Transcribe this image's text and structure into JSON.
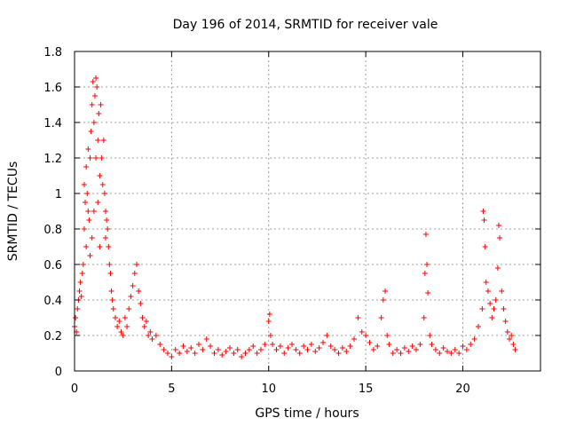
{
  "chart_data": {
    "type": "scatter",
    "title": "Day 196 of 2014, SRMTID for receiver vale",
    "xlabel": "GPS time / hours",
    "ylabel": "SRMTID / TECUs",
    "xlim": [
      0,
      24
    ],
    "ylim": [
      0,
      1.8
    ],
    "xticks": [
      0,
      5,
      10,
      15,
      20
    ],
    "xtick_labels": [
      "0",
      "5",
      "10",
      "15",
      "20"
    ],
    "yticks": [
      0,
      0.2,
      0.4,
      0.6,
      0.8,
      1.0,
      1.2,
      1.4,
      1.6,
      1.8
    ],
    "ytick_labels": [
      "0",
      "0.2",
      "0.4",
      "0.6",
      "0.8",
      "1",
      "1.2",
      "1.4",
      "1.6",
      "1.8"
    ],
    "grid": true,
    "marker": "+",
    "color": "#ff0000",
    "series": [
      {
        "name": "SRMTID",
        "points": [
          [
            0.0,
            0.25
          ],
          [
            0.05,
            0.3
          ],
          [
            0.1,
            0.22
          ],
          [
            0.15,
            0.35
          ],
          [
            0.2,
            0.4
          ],
          [
            0.25,
            0.45
          ],
          [
            0.3,
            0.5
          ],
          [
            0.35,
            0.42
          ],
          [
            0.4,
            0.55
          ],
          [
            0.45,
            0.6
          ],
          [
            0.5,
            1.05
          ],
          [
            0.5,
            0.8
          ],
          [
            0.55,
            0.95
          ],
          [
            0.6,
            1.15
          ],
          [
            0.6,
            0.7
          ],
          [
            0.65,
            1.0
          ],
          [
            0.7,
            0.9
          ],
          [
            0.7,
            1.25
          ],
          [
            0.75,
            0.85
          ],
          [
            0.8,
            1.2
          ],
          [
            0.8,
            0.65
          ],
          [
            0.85,
            1.35
          ],
          [
            0.9,
            1.5
          ],
          [
            0.9,
            0.75
          ],
          [
            0.95,
            1.63
          ],
          [
            1.0,
            1.4
          ],
          [
            1.0,
            0.9
          ],
          [
            1.05,
            1.55
          ],
          [
            1.1,
            1.65
          ],
          [
            1.1,
            1.2
          ],
          [
            1.15,
            1.6
          ],
          [
            1.2,
            1.3
          ],
          [
            1.2,
            0.95
          ],
          [
            1.25,
            1.45
          ],
          [
            1.3,
            1.1
          ],
          [
            1.3,
            0.7
          ],
          [
            1.35,
            1.5
          ],
          [
            1.4,
            1.2
          ],
          [
            1.45,
            1.05
          ],
          [
            1.5,
            1.3
          ],
          [
            1.55,
            1.0
          ],
          [
            1.6,
            0.9
          ],
          [
            1.6,
            0.75
          ],
          [
            1.65,
            0.85
          ],
          [
            1.7,
            0.8
          ],
          [
            1.75,
            0.7
          ],
          [
            1.8,
            0.6
          ],
          [
            1.85,
            0.55
          ],
          [
            1.9,
            0.45
          ],
          [
            1.95,
            0.4
          ],
          [
            2.0,
            0.35
          ],
          [
            2.1,
            0.3
          ],
          [
            2.2,
            0.25
          ],
          [
            2.3,
            0.28
          ],
          [
            2.4,
            0.22
          ],
          [
            2.5,
            0.2
          ],
          [
            2.6,
            0.3
          ],
          [
            2.7,
            0.25
          ],
          [
            2.8,
            0.35
          ],
          [
            2.9,
            0.42
          ],
          [
            3.0,
            0.48
          ],
          [
            3.1,
            0.55
          ],
          [
            3.2,
            0.6
          ],
          [
            3.3,
            0.45
          ],
          [
            3.4,
            0.38
          ],
          [
            3.5,
            0.3
          ],
          [
            3.6,
            0.25
          ],
          [
            3.7,
            0.28
          ],
          [
            3.8,
            0.2
          ],
          [
            3.9,
            0.22
          ],
          [
            4.0,
            0.18
          ],
          [
            4.2,
            0.2
          ],
          [
            4.4,
            0.15
          ],
          [
            4.6,
            0.12
          ],
          [
            4.8,
            0.1
          ],
          [
            5.0,
            0.08
          ],
          [
            5.2,
            0.12
          ],
          [
            5.4,
            0.1
          ],
          [
            5.6,
            0.14
          ],
          [
            5.8,
            0.11
          ],
          [
            6.0,
            0.13
          ],
          [
            6.2,
            0.1
          ],
          [
            6.4,
            0.15
          ],
          [
            6.6,
            0.12
          ],
          [
            6.8,
            0.18
          ],
          [
            7.0,
            0.14
          ],
          [
            7.2,
            0.1
          ],
          [
            7.4,
            0.12
          ],
          [
            7.6,
            0.09
          ],
          [
            7.8,
            0.11
          ],
          [
            8.0,
            0.13
          ],
          [
            8.2,
            0.1
          ],
          [
            8.4,
            0.12
          ],
          [
            8.6,
            0.08
          ],
          [
            8.8,
            0.1
          ],
          [
            9.0,
            0.12
          ],
          [
            9.2,
            0.14
          ],
          [
            9.4,
            0.1
          ],
          [
            9.6,
            0.12
          ],
          [
            9.8,
            0.15
          ],
          [
            10.0,
            0.28
          ],
          [
            10.05,
            0.32
          ],
          [
            10.1,
            0.2
          ],
          [
            10.2,
            0.15
          ],
          [
            10.4,
            0.12
          ],
          [
            10.6,
            0.14
          ],
          [
            10.8,
            0.1
          ],
          [
            11.0,
            0.13
          ],
          [
            11.2,
            0.15
          ],
          [
            11.4,
            0.12
          ],
          [
            11.6,
            0.1
          ],
          [
            11.8,
            0.14
          ],
          [
            12.0,
            0.12
          ],
          [
            12.2,
            0.15
          ],
          [
            12.4,
            0.11
          ],
          [
            12.6,
            0.13
          ],
          [
            12.8,
            0.16
          ],
          [
            13.0,
            0.2
          ],
          [
            13.2,
            0.14
          ],
          [
            13.4,
            0.12
          ],
          [
            13.6,
            0.1
          ],
          [
            13.8,
            0.13
          ],
          [
            14.0,
            0.11
          ],
          [
            14.2,
            0.14
          ],
          [
            14.4,
            0.18
          ],
          [
            14.6,
            0.3
          ],
          [
            14.8,
            0.22
          ],
          [
            15.0,
            0.2
          ],
          [
            15.2,
            0.16
          ],
          [
            15.4,
            0.12
          ],
          [
            15.6,
            0.14
          ],
          [
            15.8,
            0.3
          ],
          [
            15.9,
            0.4
          ],
          [
            16.0,
            0.45
          ],
          [
            16.1,
            0.2
          ],
          [
            16.2,
            0.15
          ],
          [
            16.4,
            0.1
          ],
          [
            16.6,
            0.12
          ],
          [
            16.8,
            0.1
          ],
          [
            17.0,
            0.13
          ],
          [
            17.2,
            0.11
          ],
          [
            17.4,
            0.14
          ],
          [
            17.6,
            0.12
          ],
          [
            17.8,
            0.15
          ],
          [
            18.0,
            0.3
          ],
          [
            18.05,
            0.55
          ],
          [
            18.1,
            0.77
          ],
          [
            18.15,
            0.6
          ],
          [
            18.2,
            0.44
          ],
          [
            18.3,
            0.2
          ],
          [
            18.4,
            0.15
          ],
          [
            18.6,
            0.12
          ],
          [
            18.8,
            0.1
          ],
          [
            19.0,
            0.13
          ],
          [
            19.2,
            0.11
          ],
          [
            19.4,
            0.1
          ],
          [
            19.6,
            0.12
          ],
          [
            19.8,
            0.1
          ],
          [
            20.0,
            0.14
          ],
          [
            20.2,
            0.12
          ],
          [
            20.4,
            0.15
          ],
          [
            20.6,
            0.18
          ],
          [
            20.8,
            0.25
          ],
          [
            21.0,
            0.35
          ],
          [
            21.05,
            0.9
          ],
          [
            21.1,
            0.85
          ],
          [
            21.15,
            0.7
          ],
          [
            21.2,
            0.5
          ],
          [
            21.3,
            0.45
          ],
          [
            21.4,
            0.38
          ],
          [
            21.5,
            0.3
          ],
          [
            21.6,
            0.35
          ],
          [
            21.7,
            0.4
          ],
          [
            21.8,
            0.58
          ],
          [
            21.85,
            0.82
          ],
          [
            21.9,
            0.75
          ],
          [
            22.0,
            0.45
          ],
          [
            22.1,
            0.35
          ],
          [
            22.2,
            0.28
          ],
          [
            22.3,
            0.22
          ],
          [
            22.4,
            0.18
          ],
          [
            22.5,
            0.2
          ],
          [
            22.6,
            0.15
          ],
          [
            22.7,
            0.12
          ]
        ]
      }
    ]
  }
}
